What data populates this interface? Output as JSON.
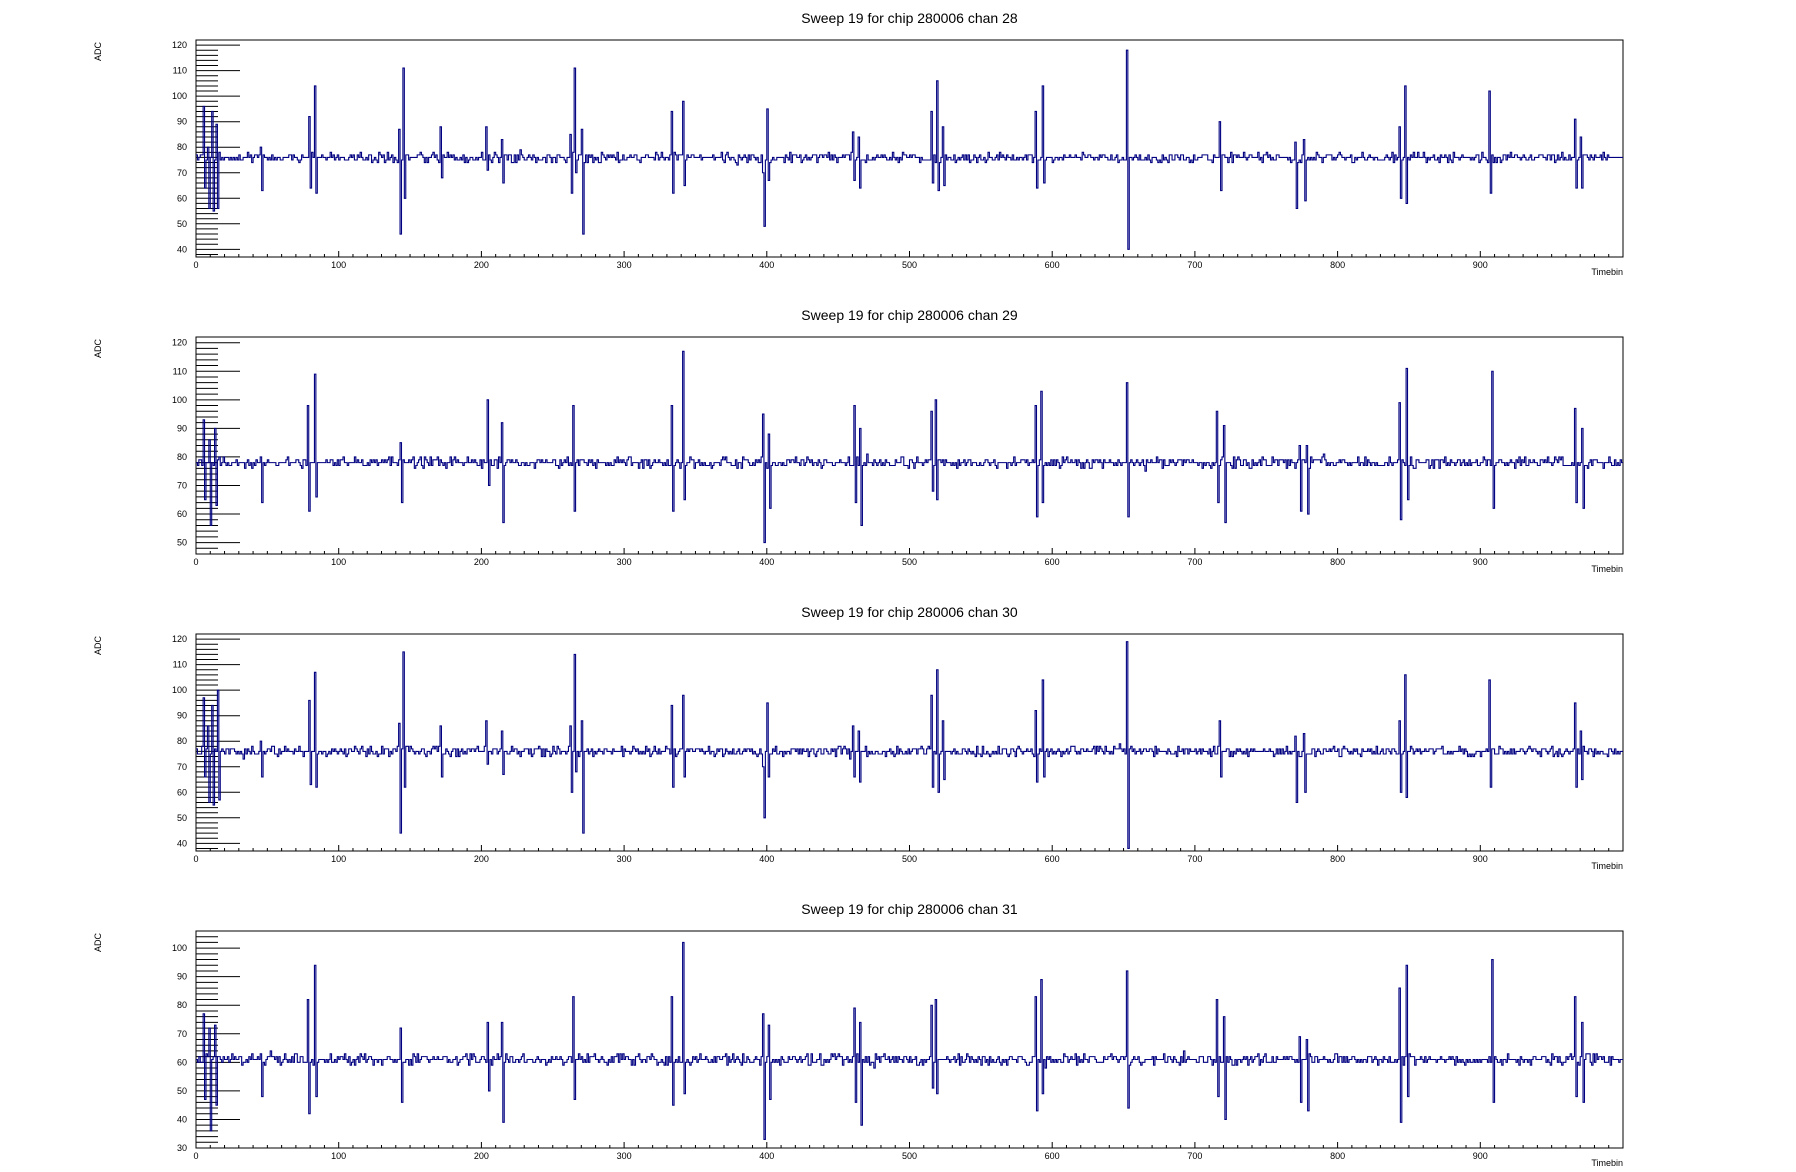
{
  "chart_data": [
    {
      "type": "line",
      "title": "Sweep 19 for chip 280006 chan 28",
      "xlabel": "Timebin",
      "ylabel": "ADC",
      "xlim": [
        0,
        1000
      ],
      "ylim": [
        37,
        122
      ],
      "xticks": [
        0,
        100,
        200,
        300,
        400,
        500,
        600,
        700,
        800,
        900
      ],
      "yticks": [
        40,
        50,
        60,
        70,
        80,
        90,
        100,
        110,
        120
      ],
      "baseline": 76,
      "noise": 1.2,
      "line_color": "#000080",
      "spikes": [
        {
          "x": 5,
          "values": [
            96,
            64
          ]
        },
        {
          "x": 8,
          "values": [
            80,
            56
          ]
        },
        {
          "x": 11,
          "values": [
            94,
            55
          ]
        },
        {
          "x": 14,
          "values": [
            89,
            56
          ]
        },
        {
          "x": 45,
          "values": [
            80,
            63
          ]
        },
        {
          "x": 79,
          "values": [
            92,
            64
          ]
        },
        {
          "x": 83,
          "values": [
            104,
            62
          ]
        },
        {
          "x": 142,
          "values": [
            87,
            46
          ]
        },
        {
          "x": 145,
          "values": [
            111,
            60
          ]
        },
        {
          "x": 171,
          "values": [
            88,
            68
          ]
        },
        {
          "x": 203,
          "values": [
            88,
            71
          ]
        },
        {
          "x": 214,
          "values": [
            83,
            66
          ]
        },
        {
          "x": 262,
          "values": [
            85,
            62
          ]
        },
        {
          "x": 265,
          "values": [
            111,
            70
          ]
        },
        {
          "x": 270,
          "values": [
            87,
            46
          ]
        },
        {
          "x": 333,
          "values": [
            94,
            62
          ]
        },
        {
          "x": 341,
          "values": [
            98,
            65
          ]
        },
        {
          "x": 397,
          "values": [
            70,
            49
          ]
        },
        {
          "x": 400,
          "values": [
            95,
            67
          ]
        },
        {
          "x": 460,
          "values": [
            86,
            67
          ]
        },
        {
          "x": 464,
          "values": [
            84,
            64
          ]
        },
        {
          "x": 515,
          "values": [
            94,
            66
          ]
        },
        {
          "x": 519,
          "values": [
            106,
            63
          ]
        },
        {
          "x": 523,
          "values": [
            88,
            65
          ]
        },
        {
          "x": 588,
          "values": [
            94,
            64
          ]
        },
        {
          "x": 593,
          "values": [
            104,
            66
          ]
        },
        {
          "x": 652,
          "values": [
            118,
            40
          ]
        },
        {
          "x": 717,
          "values": [
            90,
            63
          ]
        },
        {
          "x": 770,
          "values": [
            82,
            56
          ]
        },
        {
          "x": 776,
          "values": [
            83,
            59
          ]
        },
        {
          "x": 843,
          "values": [
            88,
            60
          ]
        },
        {
          "x": 847,
          "values": [
            104,
            58
          ]
        },
        {
          "x": 906,
          "values": [
            102,
            62
          ]
        },
        {
          "x": 966,
          "values": [
            91,
            64
          ]
        },
        {
          "x": 970,
          "values": [
            84,
            64
          ]
        }
      ]
    },
    {
      "type": "line",
      "title": "Sweep 19 for chip 280006 chan 29",
      "xlabel": "Timebin",
      "ylabel": "ADC",
      "xlim": [
        0,
        1000
      ],
      "ylim": [
        46,
        122
      ],
      "xticks": [
        0,
        100,
        200,
        300,
        400,
        500,
        600,
        700,
        800,
        900
      ],
      "yticks": [
        50,
        60,
        70,
        80,
        90,
        100,
        110,
        120
      ],
      "baseline": 78,
      "noise": 1.2,
      "line_color": "#000080",
      "spikes": [
        {
          "x": 5,
          "values": [
            93,
            65
          ]
        },
        {
          "x": 9,
          "values": [
            86,
            56
          ]
        },
        {
          "x": 13,
          "values": [
            90,
            63
          ]
        },
        {
          "x": 45,
          "values": [
            80,
            64
          ]
        },
        {
          "x": 78,
          "values": [
            98,
            61
          ]
        },
        {
          "x": 83,
          "values": [
            109,
            66
          ]
        },
        {
          "x": 143,
          "values": [
            85,
            64
          ]
        },
        {
          "x": 204,
          "values": [
            100,
            70
          ]
        },
        {
          "x": 214,
          "values": [
            92,
            57
          ]
        },
        {
          "x": 264,
          "values": [
            98,
            61
          ]
        },
        {
          "x": 333,
          "values": [
            98,
            61
          ]
        },
        {
          "x": 341,
          "values": [
            117,
            65
          ]
        },
        {
          "x": 397,
          "values": [
            95,
            50
          ]
        },
        {
          "x": 401,
          "values": [
            88,
            62
          ]
        },
        {
          "x": 461,
          "values": [
            98,
            64
          ]
        },
        {
          "x": 465,
          "values": [
            90,
            56
          ]
        },
        {
          "x": 515,
          "values": [
            96,
            68
          ]
        },
        {
          "x": 518,
          "values": [
            100,
            65
          ]
        },
        {
          "x": 588,
          "values": [
            98,
            59
          ]
        },
        {
          "x": 592,
          "values": [
            103,
            64
          ]
        },
        {
          "x": 652,
          "values": [
            106,
            59
          ]
        },
        {
          "x": 715,
          "values": [
            96,
            64
          ]
        },
        {
          "x": 720,
          "values": [
            91,
            57
          ]
        },
        {
          "x": 773,
          "values": [
            84,
            61
          ]
        },
        {
          "x": 778,
          "values": [
            84,
            60
          ]
        },
        {
          "x": 843,
          "values": [
            99,
            58
          ]
        },
        {
          "x": 848,
          "values": [
            111,
            65
          ]
        },
        {
          "x": 908,
          "values": [
            110,
            62
          ]
        },
        {
          "x": 966,
          "values": [
            97,
            64
          ]
        },
        {
          "x": 971,
          "values": [
            90,
            62
          ]
        }
      ]
    },
    {
      "type": "line",
      "title": "Sweep 19 for chip 280006 chan 30",
      "xlabel": "Timebin",
      "ylabel": "ADC",
      "xlim": [
        0,
        1000
      ],
      "ylim": [
        37,
        122
      ],
      "xticks": [
        0,
        100,
        200,
        300,
        400,
        500,
        600,
        700,
        800,
        900
      ],
      "yticks": [
        40,
        50,
        60,
        70,
        80,
        90,
        100,
        110,
        120
      ],
      "baseline": 76,
      "noise": 1.2,
      "line_color": "#000080",
      "spikes": [
        {
          "x": 5,
          "values": [
            97,
            66
          ]
        },
        {
          "x": 8,
          "values": [
            86,
            56
          ]
        },
        {
          "x": 11,
          "values": [
            94,
            55
          ]
        },
        {
          "x": 15,
          "values": [
            100,
            57
          ]
        },
        {
          "x": 45,
          "values": [
            80,
            66
          ]
        },
        {
          "x": 79,
          "values": [
            96,
            63
          ]
        },
        {
          "x": 83,
          "values": [
            107,
            62
          ]
        },
        {
          "x": 142,
          "values": [
            87,
            44
          ]
        },
        {
          "x": 145,
          "values": [
            115,
            62
          ]
        },
        {
          "x": 171,
          "values": [
            86,
            66
          ]
        },
        {
          "x": 203,
          "values": [
            88,
            71
          ]
        },
        {
          "x": 214,
          "values": [
            84,
            67
          ]
        },
        {
          "x": 262,
          "values": [
            86,
            60
          ]
        },
        {
          "x": 265,
          "values": [
            114,
            68
          ]
        },
        {
          "x": 270,
          "values": [
            88,
            44
          ]
        },
        {
          "x": 333,
          "values": [
            94,
            62
          ]
        },
        {
          "x": 341,
          "values": [
            98,
            66
          ]
        },
        {
          "x": 397,
          "values": [
            70,
            50
          ]
        },
        {
          "x": 400,
          "values": [
            95,
            66
          ]
        },
        {
          "x": 460,
          "values": [
            86,
            66
          ]
        },
        {
          "x": 464,
          "values": [
            84,
            64
          ]
        },
        {
          "x": 515,
          "values": [
            98,
            62
          ]
        },
        {
          "x": 519,
          "values": [
            108,
            60
          ]
        },
        {
          "x": 523,
          "values": [
            88,
            65
          ]
        },
        {
          "x": 588,
          "values": [
            92,
            64
          ]
        },
        {
          "x": 593,
          "values": [
            104,
            66
          ]
        },
        {
          "x": 652,
          "values": [
            119,
            38
          ]
        },
        {
          "x": 717,
          "values": [
            88,
            66
          ]
        },
        {
          "x": 770,
          "values": [
            82,
            56
          ]
        },
        {
          "x": 776,
          "values": [
            83,
            60
          ]
        },
        {
          "x": 843,
          "values": [
            88,
            60
          ]
        },
        {
          "x": 847,
          "values": [
            106,
            58
          ]
        },
        {
          "x": 906,
          "values": [
            104,
            62
          ]
        },
        {
          "x": 966,
          "values": [
            95,
            62
          ]
        },
        {
          "x": 970,
          "values": [
            84,
            65
          ]
        }
      ]
    },
    {
      "type": "line",
      "title": "Sweep 19 for chip 280006 chan 31",
      "xlabel": "Timebin",
      "ylabel": "ADC",
      "xlim": [
        0,
        1000
      ],
      "ylim": [
        30,
        106
      ],
      "xticks": [
        0,
        100,
        200,
        300,
        400,
        500,
        600,
        700,
        800,
        900
      ],
      "yticks": [
        30,
        40,
        50,
        60,
        70,
        80,
        90,
        100
      ],
      "baseline": 61,
      "noise": 1.2,
      "line_color": "#000080",
      "spikes": [
        {
          "x": 5,
          "values": [
            77,
            47
          ]
        },
        {
          "x": 9,
          "values": [
            72,
            36
          ]
        },
        {
          "x": 13,
          "values": [
            73,
            45
          ]
        },
        {
          "x": 45,
          "values": [
            63,
            48
          ]
        },
        {
          "x": 78,
          "values": [
            82,
            42
          ]
        },
        {
          "x": 83,
          "values": [
            94,
            48
          ]
        },
        {
          "x": 143,
          "values": [
            72,
            46
          ]
        },
        {
          "x": 204,
          "values": [
            74,
            50
          ]
        },
        {
          "x": 214,
          "values": [
            74,
            39
          ]
        },
        {
          "x": 264,
          "values": [
            83,
            47
          ]
        },
        {
          "x": 333,
          "values": [
            83,
            45
          ]
        },
        {
          "x": 341,
          "values": [
            102,
            49
          ]
        },
        {
          "x": 397,
          "values": [
            77,
            33
          ]
        },
        {
          "x": 401,
          "values": [
            73,
            47
          ]
        },
        {
          "x": 461,
          "values": [
            79,
            46
          ]
        },
        {
          "x": 465,
          "values": [
            74,
            38
          ]
        },
        {
          "x": 515,
          "values": [
            80,
            51
          ]
        },
        {
          "x": 518,
          "values": [
            82,
            49
          ]
        },
        {
          "x": 588,
          "values": [
            83,
            43
          ]
        },
        {
          "x": 592,
          "values": [
            89,
            49
          ]
        },
        {
          "x": 652,
          "values": [
            92,
            44
          ]
        },
        {
          "x": 715,
          "values": [
            82,
            48
          ]
        },
        {
          "x": 720,
          "values": [
            76,
            40
          ]
        },
        {
          "x": 773,
          "values": [
            69,
            46
          ]
        },
        {
          "x": 778,
          "values": [
            68,
            43
          ]
        },
        {
          "x": 843,
          "values": [
            86,
            39
          ]
        },
        {
          "x": 848,
          "values": [
            94,
            48
          ]
        },
        {
          "x": 908,
          "values": [
            96,
            46
          ]
        },
        {
          "x": 966,
          "values": [
            83,
            48
          ]
        },
        {
          "x": 971,
          "values": [
            74,
            46
          ]
        }
      ]
    }
  ]
}
